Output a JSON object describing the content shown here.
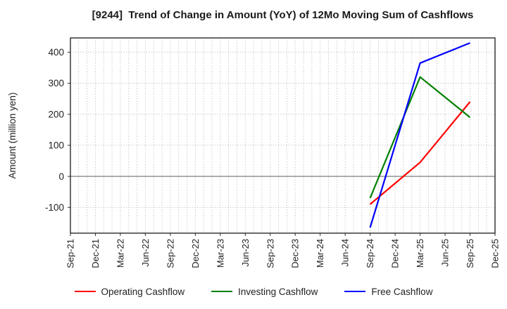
{
  "chart_data": {
    "type": "line",
    "title": "[9244]  Trend of Change in Amount (YoY) of 12Mo Moving Sum of Cashflows",
    "xlabel": "",
    "ylabel": "Amount (million yen)",
    "x_tick_labels": [
      "Sep-21",
      "Dec-21",
      "Mar-22",
      "Jun-22",
      "Sep-22",
      "Dec-22",
      "Mar-23",
      "Jun-23",
      "Sep-23",
      "Dec-23",
      "Mar-24",
      "Jun-24",
      "Sep-24",
      "Dec-24",
      "Mar-25",
      "Jun-25",
      "Sep-25",
      "Dec-25"
    ],
    "x_tick_month_index": [
      0,
      3,
      6,
      9,
      12,
      15,
      18,
      21,
      24,
      27,
      30,
      33,
      36,
      39,
      42,
      45,
      48,
      51
    ],
    "months_total": 51,
    "y_ticks": [
      400,
      300,
      200,
      100,
      0,
      -100
    ],
    "ylim": [
      -183,
      446
    ],
    "grid": {
      "vertical": "monthly dotted",
      "horizontal": "dotted",
      "zero_line": "solid gray"
    },
    "legend_position": "bottom",
    "series": [
      {
        "name": "Operating Cashflow",
        "color": "#ff0000",
        "points": [
          {
            "date": "Sep-24",
            "month_index": 36,
            "value": -90
          },
          {
            "date": "Mar-25",
            "month_index": 42,
            "value": 45
          },
          {
            "date": "Sep-25",
            "month_index": 48,
            "value": 240
          }
        ]
      },
      {
        "name": "Investing Cashflow",
        "color": "#008000",
        "points": [
          {
            "date": "Sep-24",
            "month_index": 36,
            "value": -70
          },
          {
            "date": "Mar-25",
            "month_index": 42,
            "value": 320
          },
          {
            "date": "Sep-25",
            "month_index": 48,
            "value": 190
          }
        ]
      },
      {
        "name": "Free Cashflow",
        "color": "#0000ff",
        "points": [
          {
            "date": "Sep-24",
            "month_index": 36,
            "value": -165
          },
          {
            "date": "Mar-25",
            "month_index": 42,
            "value": 365
          },
          {
            "date": "Sep-25",
            "month_index": 48,
            "value": 430
          }
        ]
      }
    ]
  }
}
